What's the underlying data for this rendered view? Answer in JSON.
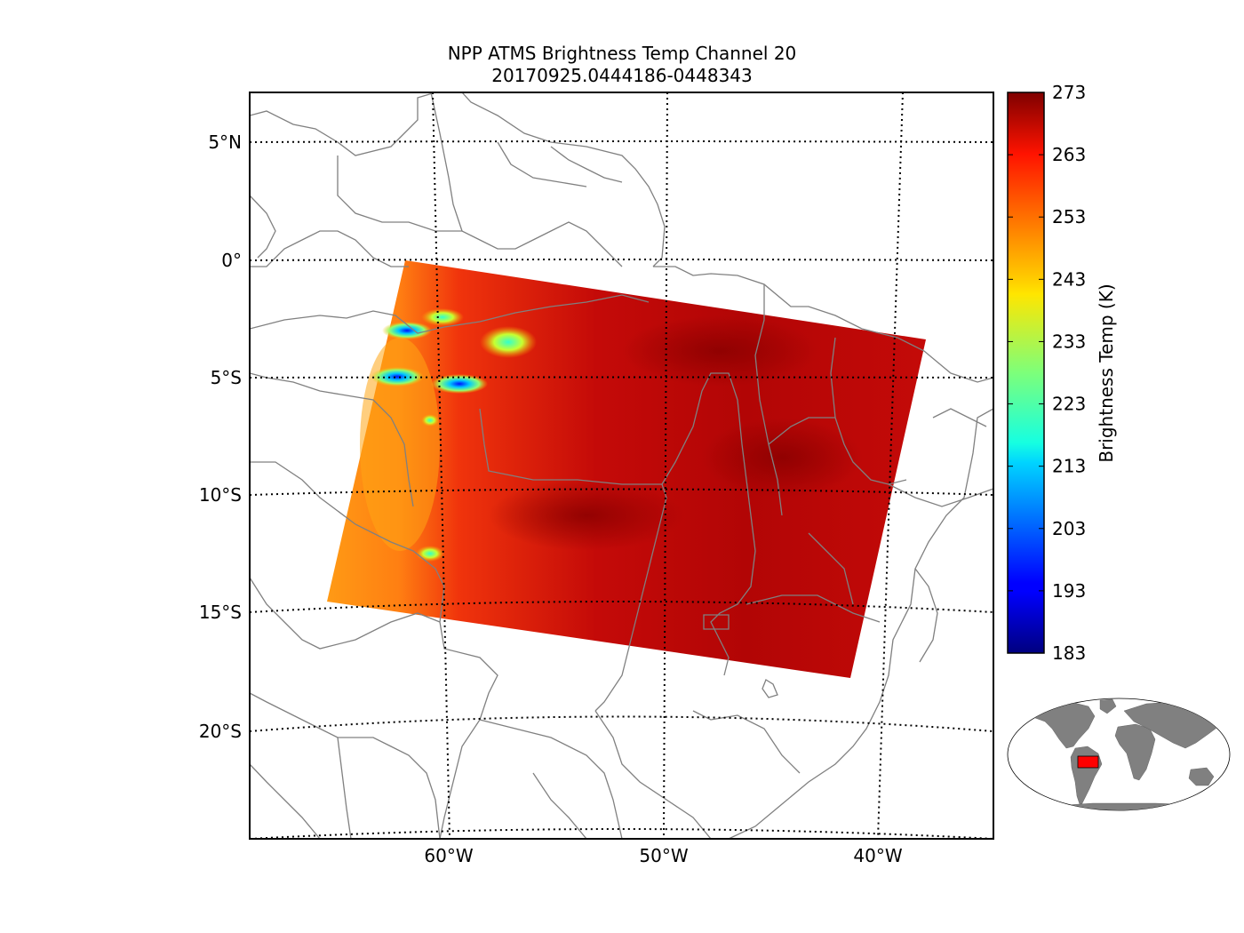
{
  "title": {
    "line1": "NPP ATMS Brightness Temp Channel 20",
    "line2": "20170925.0444186-0448343"
  },
  "map": {
    "lat_labels": [
      "5°N",
      "0°",
      "5°S",
      "10°S",
      "15°S",
      "20°S"
    ],
    "lon_labels": [
      "60°W",
      "50°W",
      "40°W"
    ],
    "lat_values": [
      5,
      0,
      -5,
      -10,
      -15,
      -20
    ],
    "lon_values": [
      -60,
      -50,
      -40
    ],
    "extent": {
      "lon_min": -69,
      "lon_max": -35,
      "lat_min": -24.5,
      "lat_max": 7
    }
  },
  "colorbar": {
    "label": "Brightness Temp (K)",
    "tick_labels": [
      "273",
      "263",
      "253",
      "243",
      "233",
      "223",
      "213",
      "203",
      "193",
      "183"
    ],
    "min": 183,
    "max": 273,
    "colormap": "jet"
  },
  "colors": {
    "coastline": "#808080",
    "swath_main": "#d01010",
    "swath_hot": "#9a0000",
    "swath_edge": "#ff8a10",
    "land_inset": "#808080",
    "highlight_inset": "#ff0000"
  }
}
